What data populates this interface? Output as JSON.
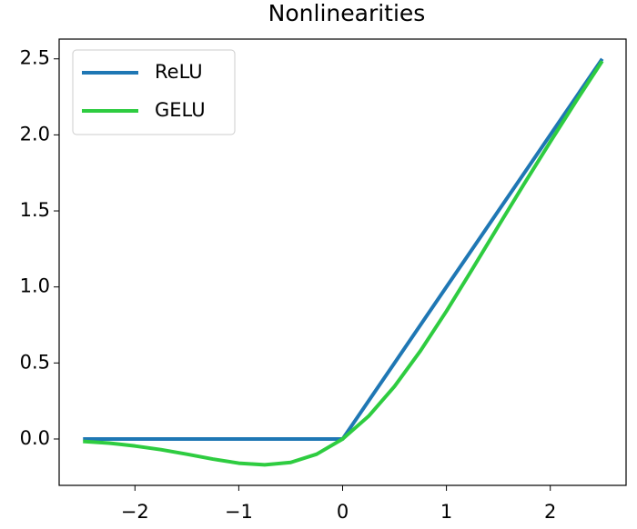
{
  "chart_data": {
    "type": "line",
    "title": "Nonlinearities",
    "x": [
      -2.5,
      -2.25,
      -2,
      -1.75,
      -1.5,
      -1.25,
      -1,
      -0.75,
      -0.5,
      -0.25,
      0,
      0.25,
      0.5,
      0.75,
      1,
      1.25,
      1.5,
      1.75,
      2,
      2.25,
      2.5
    ],
    "series": [
      {
        "name": "ReLU",
        "color": "#1f77b4",
        "values": [
          0,
          0,
          0,
          0,
          0,
          0,
          0,
          0,
          0,
          0,
          0,
          0.25,
          0.5,
          0.75,
          1,
          1.25,
          1.5,
          1.75,
          2,
          2.25,
          2.5
        ]
      },
      {
        "name": "GELU",
        "color": "#2ecc40",
        "values": [
          -0.016,
          -0.027,
          -0.046,
          -0.07,
          -0.1,
          -0.132,
          -0.159,
          -0.17,
          -0.154,
          -0.1,
          0,
          0.15,
          0.346,
          0.58,
          0.841,
          1.118,
          1.4,
          1.68,
          1.954,
          2.223,
          2.485
        ]
      }
    ],
    "xlim": [
      -2.73,
      2.73
    ],
    "ylim": [
      -0.305,
      2.63
    ],
    "xticks": [
      {
        "value": -2,
        "label": "−2"
      },
      {
        "value": -1,
        "label": "−1"
      },
      0,
      1,
      2
    ],
    "yticks": [
      {
        "value": 0,
        "label": "0.0"
      },
      {
        "value": 0.5,
        "label": "0.5"
      },
      {
        "value": 1,
        "label": "1.0"
      },
      {
        "value": 1.5,
        "label": "1.5"
      },
      {
        "value": 2,
        "label": "2.0"
      },
      {
        "value": 2.5,
        "label": "2.5"
      }
    ],
    "legend": "upper left",
    "grid": false
  }
}
